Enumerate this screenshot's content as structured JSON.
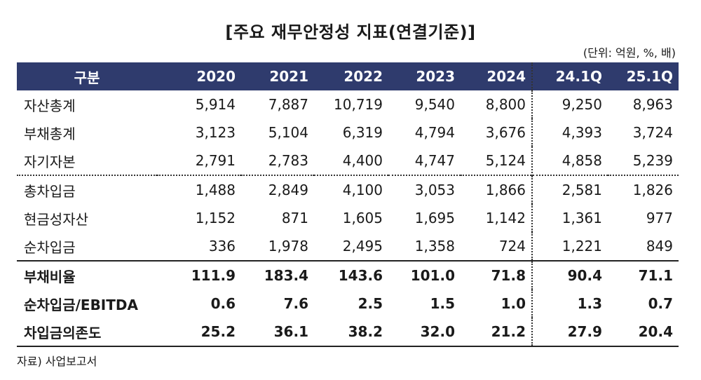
{
  "title": "[주요 재무안정성 지표(연결기준)]",
  "unit": "(단위: 억원, %, 배)",
  "columns": [
    "구분",
    "2020",
    "2021",
    "2022",
    "2023",
    "2024",
    "24.1Q",
    "25.1Q"
  ],
  "rows": [
    {
      "label": "자산총계",
      "values": [
        "5,914",
        "7,887",
        "10,719",
        "9,540",
        "8,800",
        "9,250",
        "8,963"
      ]
    },
    {
      "label": "부채총계",
      "values": [
        "3,123",
        "5,104",
        "6,319",
        "4,794",
        "3,676",
        "4,393",
        "3,724"
      ]
    },
    {
      "label": "자기자본",
      "values": [
        "2,791",
        "2,783",
        "4,400",
        "4,747",
        "5,124",
        "4,858",
        "5,239"
      ]
    },
    {
      "label": "총차입금",
      "values": [
        "1,488",
        "2,849",
        "4,100",
        "3,053",
        "1,866",
        "2,581",
        "1,826"
      ]
    },
    {
      "label": "현금성자산",
      "values": [
        "1,152",
        "871",
        "1,605",
        "1,695",
        "1,142",
        "1,361",
        "977"
      ]
    },
    {
      "label": "순차입금",
      "values": [
        "336",
        "1,978",
        "2,495",
        "1,358",
        "724",
        "1,221",
        "849"
      ]
    },
    {
      "label": "부채비율",
      "values": [
        "111.9",
        "183.4",
        "143.6",
        "101.0",
        "71.8",
        "90.4",
        "71.1"
      ]
    },
    {
      "label": "순차입금/EBITDA",
      "values": [
        "0.6",
        "7.6",
        "2.5",
        "1.5",
        "1.0",
        "1.3",
        "0.7"
      ]
    },
    {
      "label": "차입금의존도",
      "values": [
        "25.2",
        "36.1",
        "38.2",
        "32.0",
        "21.2",
        "27.9",
        "20.4"
      ]
    }
  ],
  "source": "자료) 사업보고서",
  "colors": {
    "header_bg": "#2f3b6d",
    "header_text": "#ffffff"
  }
}
